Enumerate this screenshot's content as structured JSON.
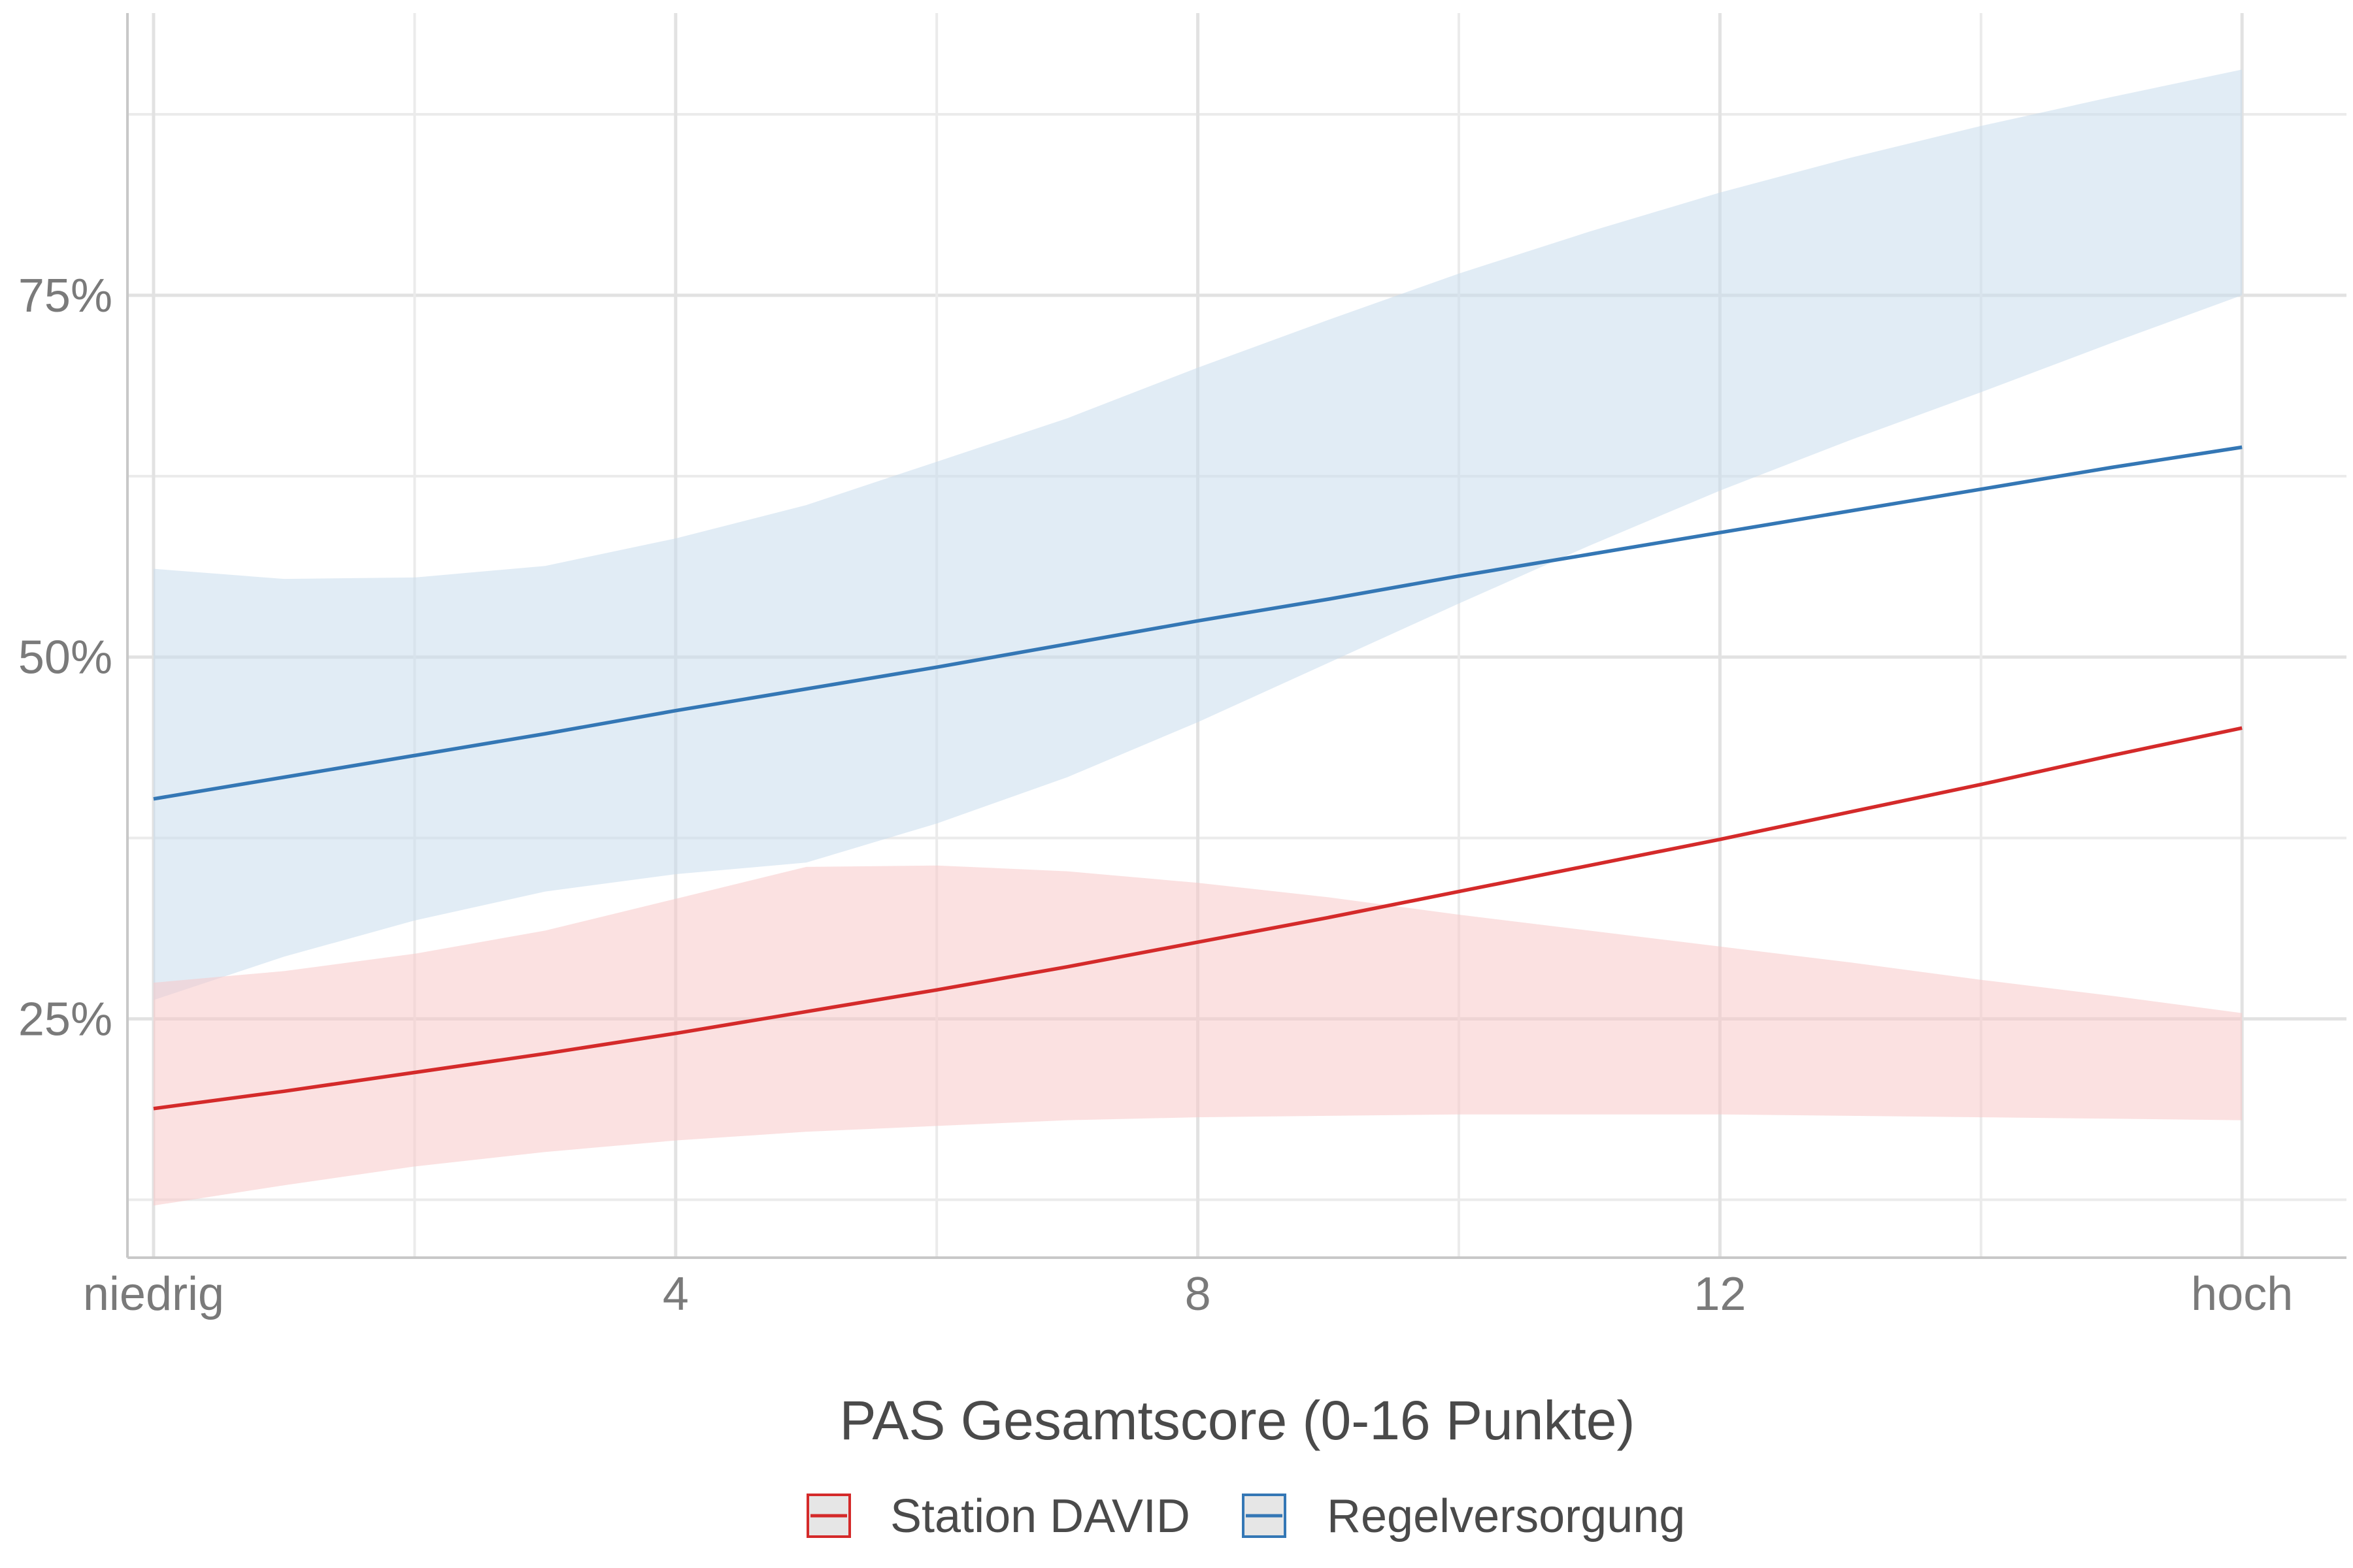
{
  "chart_data": {
    "type": "line",
    "xlabel": "PAS Gesamtscore (0-16 Punkte)",
    "ylabel": "",
    "xlim": [
      -0.2,
      16.8
    ],
    "ylim": [
      0.085,
      0.945
    ],
    "x_ticks": [
      {
        "value": 0,
        "label": "niedrig"
      },
      {
        "value": 4,
        "label": "4"
      },
      {
        "value": 8,
        "label": "8"
      },
      {
        "value": 12,
        "label": "12"
      },
      {
        "value": 16,
        "label": "hoch"
      }
    ],
    "x_minor": [
      2,
      6,
      10,
      14
    ],
    "y_ticks": [
      {
        "value": 0.25,
        "label": "25%"
      },
      {
        "value": 0.5,
        "label": "50%"
      },
      {
        "value": 0.75,
        "label": "75%"
      }
    ],
    "y_minor": [
      0.125,
      0.375,
      0.625,
      0.875
    ],
    "grid": true,
    "legend_position": "bottom",
    "series": [
      {
        "name": "Regelversorgung",
        "color": "#3477b5",
        "fill_color": "#c9dced",
        "x": [
          0,
          1,
          2,
          3,
          4,
          5,
          6,
          7,
          8,
          9,
          10,
          11,
          12,
          13,
          14,
          15,
          16
        ],
        "y": [
          0.402,
          0.417,
          0.432,
          0.447,
          0.463,
          0.478,
          0.493,
          0.509,
          0.525,
          0.54,
          0.556,
          0.571,
          0.586,
          0.601,
          0.616,
          0.631,
          0.645
        ],
        "lower": [
          0.263,
          0.293,
          0.318,
          0.338,
          0.35,
          0.358,
          0.385,
          0.417,
          0.455,
          0.496,
          0.537,
          0.577,
          0.615,
          0.65,
          0.683,
          0.717,
          0.75
        ],
        "upper": [
          0.561,
          0.554,
          0.555,
          0.563,
          0.582,
          0.605,
          0.635,
          0.665,
          0.7,
          0.733,
          0.765,
          0.794,
          0.821,
          0.845,
          0.867,
          0.887,
          0.906
        ]
      },
      {
        "name": "Station DAVID",
        "color": "#d42a2a",
        "fill_color": "#f7c8c8",
        "x": [
          0,
          1,
          2,
          3,
          4,
          5,
          6,
          7,
          8,
          9,
          10,
          11,
          12,
          13,
          14,
          15,
          16
        ],
        "y": [
          0.188,
          0.2,
          0.213,
          0.226,
          0.24,
          0.255,
          0.27,
          0.286,
          0.303,
          0.32,
          0.338,
          0.356,
          0.374,
          0.393,
          0.412,
          0.432,
          0.451
        ],
        "lower": [
          0.121,
          0.135,
          0.148,
          0.158,
          0.166,
          0.172,
          0.176,
          0.18,
          0.182,
          0.183,
          0.184,
          0.184,
          0.184,
          0.183,
          0.182,
          0.181,
          0.18
        ],
        "upper": [
          0.275,
          0.283,
          0.295,
          0.311,
          0.333,
          0.355,
          0.356,
          0.352,
          0.344,
          0.334,
          0.322,
          0.311,
          0.3,
          0.289,
          0.277,
          0.266,
          0.254
        ]
      }
    ]
  }
}
